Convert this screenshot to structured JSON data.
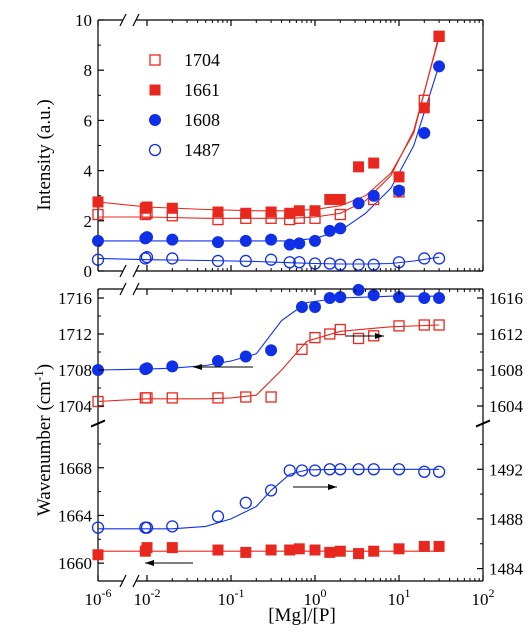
{
  "chart_data": [
    {
      "panel": "top",
      "type": "scatter",
      "xlabel": "",
      "ylabel": "Intensity (a.u.)",
      "xscale": "log",
      "xlim": [
        1e-06,
        100
      ],
      "ylim": [
        0,
        10
      ],
      "yticks": [
        "0",
        "2",
        "4",
        "6",
        "8",
        "10"
      ],
      "legend": {
        "placement": "top-left"
      },
      "series": [
        {
          "name": "1704",
          "marker": "open-square",
          "color": "#e8281e",
          "x": [
            1e-06,
            0.0068,
            0.01,
            0.02,
            0.07,
            0.15,
            0.3,
            0.5,
            0.65,
            1.0,
            2.0,
            5.0,
            10,
            20,
            30
          ],
          "y": [
            2.25,
            2.25,
            2.3,
            2.2,
            2.05,
            2.1,
            2.1,
            2.05,
            2.1,
            2.1,
            2.25,
            2.85,
            3.15,
            6.8,
            9.35
          ],
          "fit": [
            2.15,
            2.15,
            2.1,
            2.1,
            2.1,
            2.15,
            2.3,
            2.8,
            3.8,
            5.6,
            9.3
          ]
        },
        {
          "name": "1661",
          "marker": "filled-square",
          "color": "#e8281e",
          "x": [
            1e-06,
            0.0068,
            0.01,
            0.02,
            0.07,
            0.15,
            0.3,
            0.5,
            0.65,
            1.0,
            1.5,
            2.0,
            3.3,
            5.0,
            10,
            20,
            30
          ],
          "y": [
            2.75,
            2.5,
            2.55,
            2.5,
            2.35,
            2.3,
            2.35,
            2.3,
            2.4,
            2.4,
            2.85,
            2.85,
            4.15,
            4.3,
            3.75,
            6.5,
            9.35
          ],
          "fit": [
            2.75,
            2.55,
            2.45,
            2.4,
            2.4,
            2.45,
            2.6,
            3.0,
            3.9,
            5.5,
            9.4
          ]
        },
        {
          "name": "1608",
          "marker": "filled-circle",
          "color": "#1030e8",
          "x": [
            1e-06,
            0.0068,
            0.01,
            0.02,
            0.07,
            0.15,
            0.3,
            0.5,
            0.65,
            1.0,
            1.5,
            2.0,
            3.3,
            5.0,
            10,
            20,
            30
          ],
          "y": [
            1.2,
            1.3,
            1.35,
            1.25,
            1.15,
            1.2,
            1.25,
            1.05,
            1.1,
            1.2,
            1.6,
            1.7,
            2.7,
            3.0,
            3.2,
            5.5,
            8.15
          ],
          "fit": [
            1.2,
            1.2,
            1.2,
            1.2,
            1.2,
            1.3,
            1.6,
            2.3,
            3.3,
            5.0,
            8.2
          ]
        },
        {
          "name": "1487",
          "marker": "open-circle",
          "color": "#1030e8",
          "x": [
            1e-06,
            0.0068,
            0.01,
            0.02,
            0.07,
            0.15,
            0.3,
            0.5,
            0.65,
            1.0,
            1.5,
            2.0,
            3.3,
            5.0,
            10,
            20,
            30
          ],
          "y": [
            0.45,
            0.5,
            0.55,
            0.5,
            0.4,
            0.4,
            0.45,
            0.35,
            0.35,
            0.3,
            0.3,
            0.25,
            0.25,
            0.25,
            0.35,
            0.5,
            0.5
          ],
          "fit": [
            0.5,
            0.45,
            0.42,
            0.38,
            0.33,
            0.3,
            0.28,
            0.28,
            0.3,
            0.4,
            0.55
          ]
        }
      ]
    },
    {
      "panel": "bottom",
      "type": "scatter",
      "xlabel": "[Mg]/[P]",
      "ylabel": "Wavenumber (cm-1)",
      "xscale": "log",
      "xlim": [
        1e-06,
        100
      ],
      "xticks": [
        "10-6",
        "10-2",
        "10-1",
        "100",
        "101",
        "102"
      ],
      "upper_left_axis": {
        "ylim": [
          1703,
          1717
        ],
        "yticks": [
          "1704",
          "1708",
          "1712",
          "1716"
        ]
      },
      "upper_right_axis": {
        "ylim": [
          1603,
          1617
        ],
        "yticks": [
          "1604",
          "1608",
          "1612",
          "1616"
        ]
      },
      "lower_left_axis": {
        "ylim": [
          1658.5,
          1671
        ],
        "yticks": [
          "1660",
          "1664",
          "1668"
        ]
      },
      "lower_right_axis": {
        "ylim": [
          1483,
          1495
        ],
        "yticks": [
          "1484",
          "1488",
          "1492"
        ]
      },
      "series": [
        {
          "name": "1704",
          "marker": "open-square",
          "color": "#e8281e",
          "axis": "upper-left",
          "x": [
            1e-06,
            0.0068,
            0.01,
            0.02,
            0.07,
            0.15,
            0.3,
            0.7,
            1.0,
            1.5,
            2.0,
            3.3,
            5.0,
            10,
            20,
            30
          ],
          "y": [
            1704.5,
            1704.9,
            1704.9,
            1704.9,
            1704.9,
            1705.0,
            1705.0,
            1710.3,
            1711.6,
            1712.0,
            1712.5,
            1711.5,
            1711.8,
            1712.9,
            1713.0,
            1713.0
          ],
          "fit": [
            1704.5,
            1704.8,
            1704.8,
            1704.8,
            1704.9,
            1705.2,
            1708.0,
            1711.2,
            1712.3,
            1712.8,
            1713.0
          ],
          "arrow": "left"
        },
        {
          "name": "1608",
          "marker": "filled-circle",
          "color": "#1030e8",
          "axis": "upper-right",
          "x": [
            1e-06,
            0.0068,
            0.01,
            0.02,
            0.07,
            0.15,
            0.3,
            0.7,
            1.0,
            1.5,
            2.0,
            3.3,
            5.0,
            10,
            20,
            30
          ],
          "y": [
            1608.0,
            1608.1,
            1608.2,
            1608.4,
            1609.0,
            1609.5,
            1610.2,
            1615.0,
            1615.0,
            1616.0,
            1616.1,
            1616.9,
            1616.3,
            1616.1,
            1616.0,
            1616.0
          ],
          "fit": [
            1608.0,
            1608.1,
            1608.2,
            1608.5,
            1609.0,
            1609.8,
            1613.5,
            1615.5,
            1616.0,
            1616.2,
            1616.2
          ],
          "arrow": "right"
        },
        {
          "name": "1487",
          "marker": "open-circle",
          "color": "#1030e8",
          "axis": "lower-right",
          "x": [
            1e-06,
            0.0068,
            0.01,
            0.02,
            0.07,
            0.15,
            0.3,
            0.5,
            0.7,
            1.0,
            1.5,
            2.0,
            3.3,
            5.0,
            10,
            20,
            30
          ],
          "y": [
            1487.3,
            1487.3,
            1487.3,
            1487.4,
            1488.2,
            1489.3,
            1490.3,
            1491.9,
            1491.9,
            1491.9,
            1492.0,
            1492.0,
            1492.0,
            1492.0,
            1492.0,
            1491.8,
            1491.8
          ],
          "fit": [
            1487.2,
            1487.2,
            1487.2,
            1487.4,
            1488.0,
            1489.0,
            1490.3,
            1491.6,
            1491.95,
            1492.0,
            1492.0,
            1492.0
          ],
          "arrow": "right"
        },
        {
          "name": "1661",
          "marker": "filled-square",
          "color": "#e8281e",
          "axis": "lower-left",
          "x": [
            1e-06,
            0.0068,
            0.01,
            0.02,
            0.07,
            0.15,
            0.3,
            0.5,
            0.65,
            1.0,
            1.5,
            2.0,
            3.3,
            5.0,
            10,
            20,
            30
          ],
          "y": [
            1660.7,
            1661.0,
            1661.3,
            1661.3,
            1661.1,
            1660.9,
            1661.1,
            1661.1,
            1661.2,
            1661.1,
            1660.9,
            1661.0,
            1660.8,
            1661.0,
            1661.2,
            1661.4,
            1661.4
          ],
          "fit": [
            1661.0,
            1661.0,
            1661.0,
            1661.0,
            1661.0,
            1661.0,
            1661.0,
            1661.0,
            1661.0,
            1661.0,
            1661.0
          ],
          "arrow": "left"
        }
      ]
    }
  ]
}
